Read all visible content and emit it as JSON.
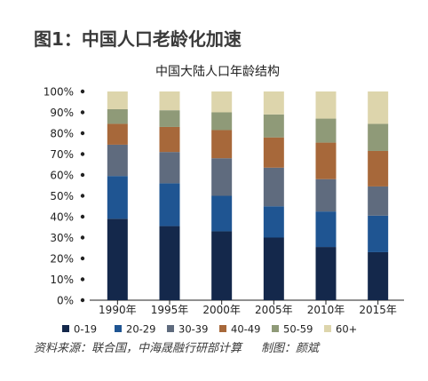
{
  "figure_title": "图1：中国人口老龄化加速",
  "source": {
    "text": "资料来源：联合国，中海晟融行研部计算",
    "maker": "制图：颜斌"
  },
  "chart_data": {
    "type": "bar",
    "stacked": true,
    "title": "中国大陆人口年龄结构",
    "xlabel": "",
    "ylabel": "",
    "ylim": [
      0,
      100
    ],
    "yticks": [
      "0%",
      "10%",
      "20%",
      "30%",
      "40%",
      "50%",
      "60%",
      "70%",
      "80%",
      "90%",
      "100%"
    ],
    "categories": [
      "1990年",
      "1995年",
      "2000年",
      "2005年",
      "2010年",
      "2015年"
    ],
    "legend_position": "bottom",
    "grid": false,
    "series": [
      {
        "name": "0-19",
        "color": "#14284b",
        "values": [
          39,
          35.5,
          33,
          30,
          25.5,
          23
        ]
      },
      {
        "name": "20-29",
        "color": "#1f5592",
        "values": [
          20.5,
          20.5,
          17,
          15,
          17,
          17.5
        ]
      },
      {
        "name": "30-39",
        "color": "#5f6b7e",
        "values": [
          15,
          15,
          18,
          18.5,
          15.5,
          14
        ]
      },
      {
        "name": "40-49",
        "color": "#a7683a",
        "values": [
          10,
          12,
          13.5,
          14.5,
          17.5,
          17
        ]
      },
      {
        "name": "50-59",
        "color": "#8f9a78",
        "values": [
          7,
          8,
          8.5,
          11,
          11.5,
          13
        ]
      },
      {
        "name": "60+",
        "color": "#ddd5ac",
        "values": [
          8.5,
          9,
          10,
          11,
          13,
          15.5
        ]
      }
    ]
  }
}
